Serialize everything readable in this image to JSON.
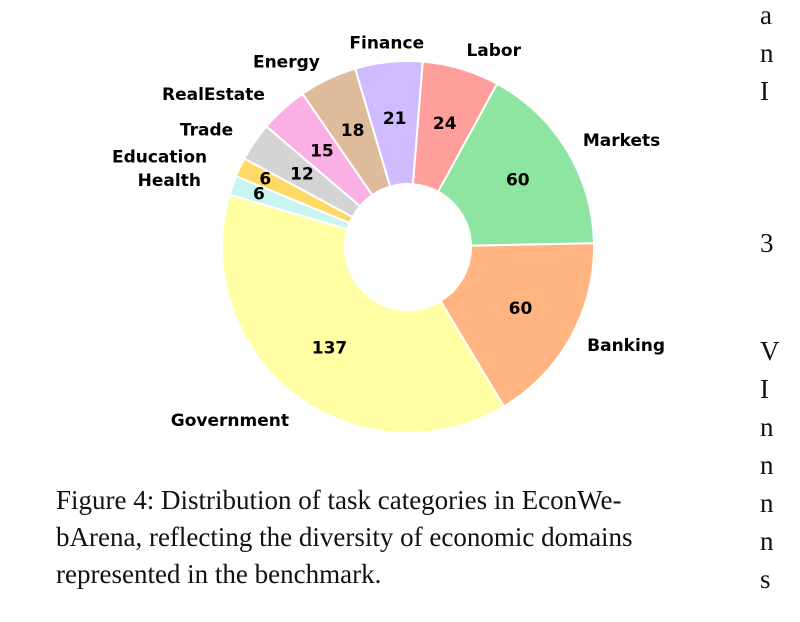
{
  "chart_data": {
    "type": "pie",
    "donut": true,
    "categories": [
      "Banking",
      "Government",
      "Health",
      "Education",
      "Trade",
      "RealEstate",
      "Energy",
      "Finance",
      "Labor",
      "Markets"
    ],
    "values": [
      60,
      137,
      6,
      6,
      12,
      15,
      18,
      21,
      24,
      60
    ],
    "colors": [
      "#ffb482",
      "#fffea3",
      "#c8f5f0",
      "#ffd966",
      "#d4d4d4",
      "#fab0e4",
      "#debb9b",
      "#d0bbff",
      "#ff9f9b",
      "#8de5a1"
    ],
    "label_fontweight": "bold"
  },
  "caption": "Figure 4: Distribution of task categories in EconWebArena, reflecting the diversity of economic domains represented in the benchmark.",
  "caption_lines": [
    "Figure 4:  Distribution of task categories in EconWe-",
    "bArena, reflecting the diversity of economic domains",
    "represented in the benchmark."
  ],
  "edge_glyphs": [
    "a",
    "n",
    "I",
    "3",
    "V",
    "I",
    "n",
    "n",
    "n",
    "n",
    "s"
  ]
}
